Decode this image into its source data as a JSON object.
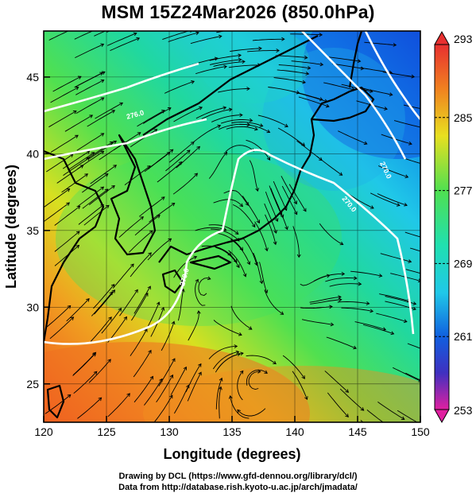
{
  "title": "MSM 15Z24Mar2026 (850.0hPa)",
  "axes": {
    "xlabel": "Longitude (degrees)",
    "ylabel": "Latitude  (degrees)",
    "xlim": [
      120,
      150
    ],
    "ylim": [
      22.5,
      48
    ],
    "x_ticks": [
      "120",
      "125",
      "130",
      "135",
      "140",
      "145",
      "150"
    ],
    "y_ticks": [
      "25",
      "30",
      "35",
      "40",
      "45"
    ]
  },
  "colorbar": {
    "labels": [
      "293",
      "285",
      "277",
      "269",
      "261",
      "253"
    ],
    "range": [
      253,
      293
    ],
    "colors": [
      "#e020a0",
      "#7030c0",
      "#2040d8",
      "#1090e8",
      "#20d8e0",
      "#30e070",
      "#a0e030",
      "#f0e020",
      "#f08020",
      "#e83030"
    ]
  },
  "contours": {
    "labels": [
      "270.0",
      "270.0",
      "270.0",
      "276.0"
    ],
    "color": "#ffffff"
  },
  "credits": {
    "line1": "Drawing by DCL (https://www.gfd-dennou.org/library/dcl/)",
    "line2": "Data from http://database.rish.kyoto-u.ac.jp/arch/jmadata/"
  }
}
